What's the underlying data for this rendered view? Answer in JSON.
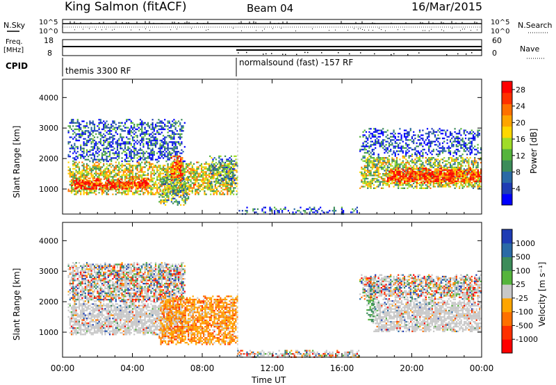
{
  "header": {
    "station": "King Salmon (fitACF)",
    "beam": "Beam 04",
    "date": "16/Mar/2015"
  },
  "noise_panel": {
    "left_label": "N.Sky",
    "right_label": "N.Search",
    "y_ticks_left": [
      "10^5",
      "10^0"
    ],
    "y_ticks_right": [
      "10^5",
      "10^0"
    ]
  },
  "freq_panel": {
    "left_label_1": "Freq.",
    "left_label_2": "[MHz]",
    "right_label": "Nave",
    "y_ticks_left": [
      "18",
      "8"
    ],
    "y_ticks_right": [
      "60",
      "0"
    ]
  },
  "cpid": {
    "label": "CPID",
    "segments": [
      {
        "label": "themis 3300 RF",
        "start_hour": 0
      },
      {
        "label": "normalsound (fast) -157 RF",
        "start_hour": 10
      }
    ]
  },
  "chart_data": [
    {
      "type": "heatmap",
      "name": "power",
      "ylabel": "Slant Range [km]",
      "xlabel": "Time UT",
      "x_ticks": [
        "00:00",
        "04:00",
        "08:00",
        "12:00",
        "16:00",
        "20:00",
        "00:00"
      ],
      "x_range_hours": [
        0,
        24
      ],
      "y_ticks": [
        "1000",
        "2000",
        "3000",
        "4000"
      ],
      "y_range_km": [
        180,
        4600
      ],
      "colorbar": {
        "label": "Power [dB]",
        "ticks": [
          "4",
          "8",
          "12",
          "16",
          "20",
          "24",
          "28"
        ],
        "range": [
          0,
          30
        ],
        "colors": [
          "#0000ff",
          "#1e3cb4",
          "#2a6aa6",
          "#3c8c5a",
          "#55b43c",
          "#a0dc28",
          "#ffd700",
          "#ffa500",
          "#ff7000",
          "#ff3000",
          "#ff0000"
        ]
      },
      "regions": [
        {
          "t0": 0.3,
          "t1": 10.0,
          "r0": 800,
          "r1": 1900,
          "level": 0.55
        },
        {
          "t0": 0.3,
          "t1": 7.0,
          "r0": 1900,
          "r1": 3300,
          "level": 0.2
        },
        {
          "t0": 0.5,
          "t1": 5.0,
          "r0": 1000,
          "r1": 1350,
          "level": 0.9
        },
        {
          "t0": 5.5,
          "t1": 7.2,
          "r0": 500,
          "r1": 1500,
          "level": 0.4
        },
        {
          "t0": 6.2,
          "t1": 6.9,
          "r0": 1300,
          "r1": 2100,
          "level": 0.8
        },
        {
          "t0": 8.4,
          "t1": 10.0,
          "r0": 1200,
          "r1": 2100,
          "level": 0.3
        },
        {
          "t0": 10.0,
          "t1": 17.0,
          "r0": 200,
          "r1": 420,
          "level": 0.15
        },
        {
          "t0": 17.0,
          "t1": 24.0,
          "r0": 1000,
          "r1": 2100,
          "level": 0.5
        },
        {
          "t0": 18.5,
          "t1": 24.0,
          "r0": 1200,
          "r1": 1700,
          "level": 0.85
        },
        {
          "t0": 17.0,
          "t1": 24.0,
          "r0": 2100,
          "r1": 3000,
          "level": 0.15
        }
      ]
    },
    {
      "type": "heatmap",
      "name": "velocity",
      "ylabel": "Slant Range [km]",
      "xlabel": "Time UT",
      "x_ticks": [
        "00:00",
        "04:00",
        "08:00",
        "12:00",
        "16:00",
        "20:00",
        "00:00"
      ],
      "x_range_hours": [
        0,
        24
      ],
      "y_ticks": [
        "1000",
        "2000",
        "3000",
        "4000"
      ],
      "y_range_km": [
        180,
        4600
      ],
      "colorbar": {
        "label": "Velocity [m s⁻¹]",
        "ticks": [
          "1000",
          "500",
          "100",
          "25",
          "-25",
          "-100",
          "-500",
          "-1000"
        ],
        "colors": [
          "#1e3cb4",
          "#2a6aa6",
          "#3c8c5a",
          "#55b43c",
          "#c8c8c8",
          "#ffa500",
          "#ff7000",
          "#ff3000",
          "#ff0000"
        ]
      },
      "regions": [
        {
          "t0": 0.3,
          "t1": 7.0,
          "r0": 900,
          "r1": 2000,
          "kind": "ground"
        },
        {
          "t0": 0.3,
          "t1": 7.0,
          "r0": 2000,
          "r1": 3300,
          "kind": "mixed"
        },
        {
          "t0": 5.5,
          "t1": 10.0,
          "r0": 600,
          "r1": 2200,
          "kind": "neg"
        },
        {
          "t0": 10.0,
          "t1": 17.0,
          "r0": 200,
          "r1": 420,
          "kind": "mixed"
        },
        {
          "t0": 17.4,
          "t1": 17.9,
          "r0": 1300,
          "r1": 2800,
          "kind": "pos"
        },
        {
          "t0": 17.8,
          "t1": 24.0,
          "r0": 1000,
          "r1": 2100,
          "kind": "ground"
        },
        {
          "t0": 17.0,
          "t1": 24.0,
          "r0": 2100,
          "r1": 2900,
          "kind": "mixed"
        }
      ]
    }
  ]
}
